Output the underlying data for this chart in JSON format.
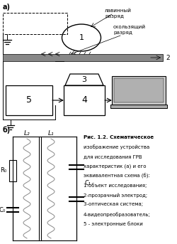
{
  "bg_color": "#ffffff",
  "label_a": "а)",
  "label_b": "б)",
  "text_lavinniy": "лавинный\nразряд",
  "text_skolzyashchiy": "скользящий\nразряд",
  "caption_lines": [
    "Рис. 1.2. Схематическое",
    "изображение устройства",
    "для исследования ГРВ",
    "характеристик (а) и его",
    "эквивалентная схема (б):",
    "1-объект исследования;",
    "2-прозрачный электрод;",
    "3-оптическая система;",
    "4-видеопреобразователь;",
    "5 - электронные блоки"
  ],
  "line_color": "#000000",
  "text_color": "#000000"
}
